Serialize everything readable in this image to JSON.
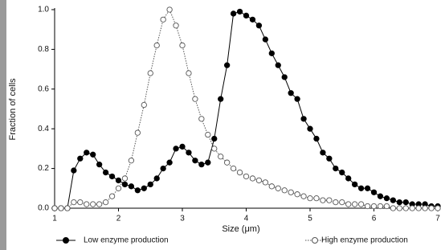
{
  "chart_data": {
    "type": "line",
    "x_label": "Size (μm)",
    "y_label": "Fraction of cells",
    "x": [
      1,
      1.1,
      1.2,
      1.3,
      1.4,
      1.5,
      1.6,
      1.7,
      1.8,
      1.9,
      2,
      2.1,
      2.2,
      2.3,
      2.4,
      2.5,
      2.6,
      2.7,
      2.8,
      2.9,
      3,
      3.1,
      3.2,
      3.3,
      3.4,
      3.5,
      3.6,
      3.7,
      3.8,
      3.9,
      4,
      4.1,
      4.2,
      4.3,
      4.4,
      4.5,
      4.6,
      4.7,
      4.8,
      4.9,
      5,
      5.1,
      5.2,
      5.3,
      5.4,
      5.5,
      5.6,
      5.7,
      5.8,
      5.9,
      6,
      6.1,
      6.2,
      6.3,
      6.4,
      6.5,
      6.6,
      6.7,
      6.8,
      6.9,
      7
    ],
    "series": [
      {
        "name": "Low enzyme production",
        "color": "#000000",
        "marker": "filled",
        "line_style": "solid",
        "values": [
          0,
          0,
          0,
          0.19,
          0.25,
          0.28,
          0.27,
          0.22,
          0.18,
          0.16,
          0.14,
          0.12,
          0.11,
          0.09,
          0.1,
          0.12,
          0.15,
          0.2,
          0.23,
          0.3,
          0.31,
          0.28,
          0.24,
          0.22,
          0.23,
          0.35,
          0.55,
          0.72,
          0.98,
          0.99,
          0.97,
          0.95,
          0.92,
          0.85,
          0.78,
          0.72,
          0.66,
          0.58,
          0.55,
          0.45,
          0.4,
          0.35,
          0.28,
          0.25,
          0.2,
          0.18,
          0.15,
          0.12,
          0.1,
          0.1,
          0.08,
          0.06,
          0.05,
          0.04,
          0.03,
          0.03,
          0.02,
          0.02,
          0.02,
          0.01,
          0.01
        ]
      },
      {
        "name": "High enzyme production",
        "color": "#555555",
        "marker": "open",
        "line_style": "dotted",
        "values": [
          0,
          0,
          0,
          0.03,
          0.03,
          0.02,
          0.02,
          0.02,
          0.03,
          0.06,
          0.1,
          0.15,
          0.24,
          0.38,
          0.52,
          0.68,
          0.82,
          0.95,
          1.0,
          0.92,
          0.82,
          0.68,
          0.55,
          0.45,
          0.37,
          0.3,
          0.26,
          0.23,
          0.2,
          0.18,
          0.16,
          0.15,
          0.14,
          0.13,
          0.11,
          0.1,
          0.09,
          0.08,
          0.07,
          0.06,
          0.05,
          0.05,
          0.04,
          0.04,
          0.03,
          0.03,
          0.02,
          0.02,
          0.02,
          0.01,
          0.01,
          0.01,
          0.01,
          0,
          0,
          0,
          0,
          0,
          0,
          0,
          0
        ]
      }
    ],
    "xlim": [
      1,
      7
    ],
    "xticks": [
      1,
      2,
      3,
      4,
      5,
      6,
      7
    ],
    "ylim": [
      0,
      1.0
    ],
    "yticks": [
      {
        "value": 0,
        "label": "0.0"
      },
      0.2,
      0.4,
      0.6,
      0.8,
      {
        "value": 1.0,
        "label": "1.0"
      }
    ],
    "legend": "bottom"
  }
}
